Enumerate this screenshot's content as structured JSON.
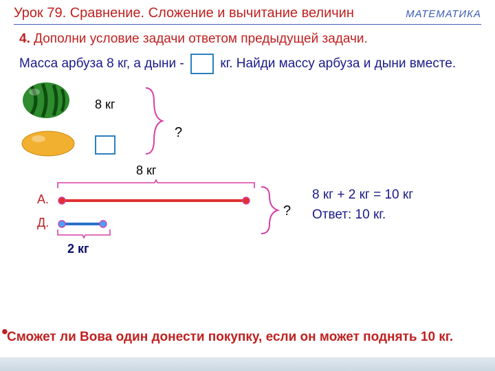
{
  "header": {
    "lesson_title": "Урок 79. Сравнение. Сложение и вычитание величин",
    "subject": "МАТЕМАТИКА"
  },
  "task": {
    "number": "4.",
    "statement": "Дополни условие задачи ответом предыдущей задачи."
  },
  "problem": {
    "text_before_box": "Масса арбуза 8 кг, а дыни -",
    "text_after_box": "кг.  Найди массу арбуза и дыни вместе."
  },
  "illustration": {
    "watermelon_label": "8 кг",
    "question_mark": "?"
  },
  "diagram": {
    "top_label": "8 кг",
    "a_label": "А.",
    "d_label": "Д.",
    "bottom_label": "2 кг",
    "question_mark": "?",
    "bar_a_width": 280,
    "bar_d_width": 72,
    "colors": {
      "bracket": "#d63fa7",
      "bar_a": "#e03030",
      "bar_d": "#2a70c8",
      "dot_ring": "#d63fa7",
      "dot_fill_a": "#e03030",
      "dot_fill_d": "#4aa0ff"
    }
  },
  "solution": {
    "equation": "8 кг   + 2 кг   = 10  кг",
    "answer": "Ответ: 10 кг."
  },
  "footer_question": "Сможет ли Вова один донести покупку, если  он может поднять 10 кг."
}
